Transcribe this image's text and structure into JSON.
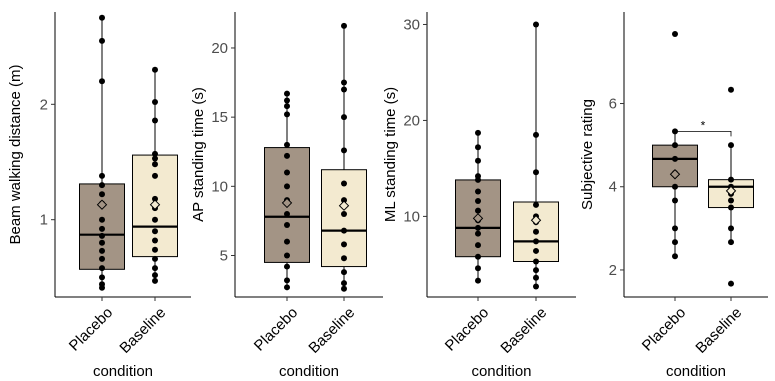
{
  "chart_data": [
    {
      "type": "box",
      "ylabel": "Beam walking distance (m)",
      "xlabel": "condition",
      "categories": [
        "Placebo",
        "Baseline"
      ],
      "colors": [
        "#a39485",
        "#f3ead0"
      ],
      "ylim": [
        0.33,
        2.8
      ],
      "yticks": [
        1,
        2
      ],
      "boxes": [
        {
          "q1": 0.57,
          "median": 0.87,
          "q3": 1.31,
          "whisker_low": 0.41,
          "whisker_high": 2.75,
          "mean": 1.13,
          "points": [
            0.41,
            0.44,
            0.5,
            0.58,
            0.66,
            0.73,
            0.8,
            0.86,
            0.92,
            1.0,
            1.14,
            1.22,
            1.3,
            1.38,
            2.2,
            2.55,
            2.75
          ]
        },
        {
          "q1": 0.68,
          "median": 0.94,
          "q3": 1.56,
          "whisker_low": 0.47,
          "whisker_high": 2.3,
          "mean": 1.13,
          "points": [
            0.47,
            0.52,
            0.58,
            0.66,
            0.74,
            0.82,
            0.9,
            1.0,
            1.1,
            1.18,
            1.38,
            1.48,
            1.53,
            1.57,
            1.86,
            2.02,
            2.3
          ]
        }
      ],
      "significance": null
    },
    {
      "type": "box",
      "ylabel": "AP standing time (s)",
      "xlabel": "condition",
      "categories": [
        "Placebo",
        "Baseline"
      ],
      "colors": [
        "#a39485",
        "#f3ead0"
      ],
      "ylim": [
        2.0,
        22.6
      ],
      "yticks": [
        5,
        10,
        15,
        20
      ],
      "boxes": [
        {
          "q1": 4.5,
          "median": 7.8,
          "q3": 12.8,
          "whisker_low": 2.7,
          "whisker_high": 16.7,
          "mean": 8.8,
          "points": [
            2.7,
            3.2,
            4.2,
            5.0,
            6.0,
            7.2,
            8.0,
            9.0,
            10.0,
            11.0,
            12.2,
            13.0,
            15.2,
            15.8,
            16.2,
            16.7
          ]
        },
        {
          "q1": 4.2,
          "median": 6.8,
          "q3": 11.2,
          "whisker_low": 2.6,
          "whisker_high": 21.6,
          "mean": 8.6,
          "points": [
            2.6,
            3.0,
            3.8,
            4.8,
            5.8,
            6.8,
            8.0,
            9.0,
            10.2,
            12.6,
            15.0,
            17.0,
            17.5,
            21.6
          ]
        }
      ],
      "significance": null
    },
    {
      "type": "box",
      "ylabel": "ML standing time (s)",
      "xlabel": "condition",
      "categories": [
        "Placebo",
        "Baseline"
      ],
      "colors": [
        "#a39485",
        "#f3ead0"
      ],
      "ylim": [
        1.6,
        31.3
      ],
      "yticks": [
        10,
        20,
        30
      ],
      "boxes": [
        {
          "q1": 5.8,
          "median": 8.8,
          "q3": 13.8,
          "whisker_low": 3.3,
          "whisker_high": 18.7,
          "mean": 9.8,
          "points": [
            3.3,
            4.6,
            5.8,
            7.0,
            8.2,
            8.8,
            9.6,
            10.6,
            11.6,
            12.6,
            13.8,
            14.2,
            15.8,
            17.2,
            18.7
          ]
        },
        {
          "q1": 5.3,
          "median": 7.4,
          "q3": 11.5,
          "whisker_low": 2.7,
          "whisker_high": 30.0,
          "mean": 9.6,
          "points": [
            2.7,
            3.6,
            4.4,
            5.3,
            6.4,
            7.4,
            8.4,
            9.4,
            10.0,
            11.2,
            14.6,
            18.5,
            30.0
          ]
        }
      ],
      "significance": null
    },
    {
      "type": "box",
      "ylabel": "Subjective rating",
      "xlabel": "condition",
      "categories": [
        "Placebo",
        "Baseline"
      ],
      "colors": [
        "#a39485",
        "#f3ead0"
      ],
      "ylim": [
        1.35,
        8.2
      ],
      "yticks": [
        2,
        4,
        6
      ],
      "boxes": [
        {
          "q1": 4.0,
          "median": 4.67,
          "q3": 5.0,
          "whisker_low": 2.33,
          "whisker_high": 5.33,
          "mean": 4.3,
          "points": [
            2.33,
            2.67,
            3.0,
            3.67,
            4.0,
            4.33,
            4.67,
            5.0,
            5.33,
            7.67
          ]
        },
        {
          "q1": 3.5,
          "median": 4.0,
          "q3": 4.17,
          "whisker_low": 2.67,
          "whisker_high": 5.0,
          "mean": 3.9,
          "points": [
            1.67,
            2.67,
            3.0,
            3.5,
            3.67,
            3.83,
            3.9,
            4.0,
            4.17,
            5.0,
            6.33
          ]
        }
      ],
      "significance": {
        "label": "*",
        "y": 5.33
      }
    }
  ]
}
